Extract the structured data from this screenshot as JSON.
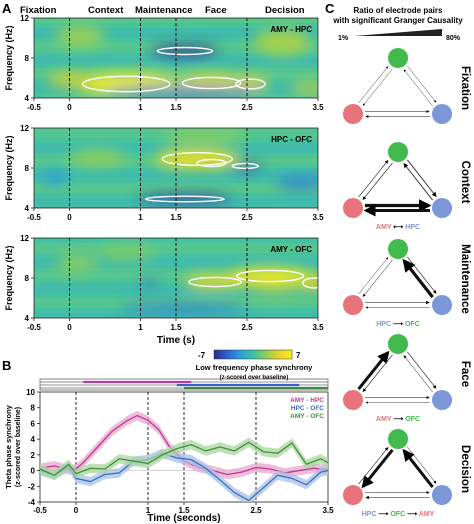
{
  "panel_labels": {
    "a": "A",
    "b": "B",
    "c": "C"
  },
  "phases": [
    "Fixation",
    "Context",
    "Maintenance",
    "Face",
    "Decision"
  ],
  "colorbar": {
    "min_label": "-7",
    "max_label": "7",
    "title": "Low frequency phase synchrony",
    "subtitle": "(z-scored over baseline)",
    "colors": [
      "#2c2a8c",
      "#2f5fd0",
      "#2aa0d8",
      "#3cc0a8",
      "#8ccf5a",
      "#e8d22a",
      "#f9f01c"
    ]
  },
  "ratio_legend": {
    "title_line1": "Ratio of electrode pairs",
    "title_line2": "with significant Granger Causality",
    "min_label": "1%",
    "max_label": "80%"
  },
  "node_colors": {
    "amy": "#e8737b",
    "hpc": "#7b97d6",
    "ofc": "#3fba4b"
  },
  "network_panels": [
    {
      "phase": "Fixation",
      "caption": null
    },
    {
      "phase": "Context",
      "caption": {
        "from": "AMY",
        "to": "HPC",
        "bidirectional": true
      }
    },
    {
      "phase": "Maintenance",
      "caption": {
        "from": "HPC",
        "to": "OFC",
        "bidirectional": false
      }
    },
    {
      "phase": "Face",
      "caption": {
        "from": "AMY",
        "to": "OFC",
        "bidirectional": false
      }
    },
    {
      "phase": "Decision",
      "caption": {
        "from": "HPC",
        "mid": "OFC",
        "to": "AMY",
        "bidirectional": false
      }
    }
  ],
  "chart_data": [
    {
      "type": "heatmap",
      "pair": "AMY - HPC",
      "x_range": [
        -0.5,
        3.5
      ],
      "y_range": [
        4,
        12
      ],
      "x_ticks": [
        "-0.5",
        "0",
        "1",
        "1.5",
        "2.5",
        "3.5"
      ],
      "y_ticks": [
        "4",
        "8",
        "12"
      ],
      "ylabel": "Frequency (Hz)",
      "xlabel": "",
      "phase_boundaries": [
        0,
        1,
        1.5,
        2.5
      ],
      "color_range": [
        -7,
        7
      ],
      "features": [
        {
          "x": 0.05,
          "y": 5.4,
          "w": 1.5,
          "h": 2.2,
          "value": 6.6,
          "significant": true
        },
        {
          "x": 1.5,
          "y": 5.5,
          "w": 1.0,
          "h": 1.6,
          "value": 5.6,
          "significant": true
        },
        {
          "x": 2.3,
          "y": 5.4,
          "w": 0.5,
          "h": 1.4,
          "value": 5.2,
          "significant": true
        },
        {
          "x": -0.3,
          "y": 5.8,
          "w": 0.6,
          "h": 1.4,
          "value": 4.2,
          "significant": false
        },
        {
          "x": 1.15,
          "y": 8.7,
          "w": 0.95,
          "h": 1.0,
          "value": -6.8,
          "significant": true
        },
        {
          "x": 0.5,
          "y": 4.7,
          "w": 2.2,
          "h": 0.8,
          "value": -4.5,
          "significant": false
        },
        {
          "x": 2.6,
          "y": 9.6,
          "w": 0.8,
          "h": 2.6,
          "value": 3.0,
          "significant": false
        },
        {
          "x": -0.2,
          "y": 10.2,
          "w": 0.7,
          "h": 2.0,
          "value": 2.8,
          "significant": false
        },
        {
          "x": 3.1,
          "y": 5.0,
          "w": 0.6,
          "h": 1.2,
          "value": 3.5,
          "significant": false
        }
      ]
    },
    {
      "type": "heatmap",
      "pair": "HPC - OFC",
      "x_range": [
        -0.5,
        3.5
      ],
      "y_range": [
        4,
        12
      ],
      "x_ticks": [
        "-0.5",
        "0",
        "1",
        "1.5",
        "2.5",
        "3.5"
      ],
      "y_ticks": [
        "4",
        "8",
        "12"
      ],
      "ylabel": "Frequency (Hz)",
      "xlabel": "",
      "phase_boundaries": [
        0,
        1,
        1.5,
        2.5
      ],
      "color_range": [
        -7,
        7
      ],
      "features": [
        {
          "x": 1.2,
          "y": 8.9,
          "w": 1.2,
          "h": 1.8,
          "value": 5.8,
          "significant": true
        },
        {
          "x": 1.75,
          "y": 8.5,
          "w": 0.5,
          "h": 1.0,
          "value": 5.0,
          "significant": true
        },
        {
          "x": 2.25,
          "y": 8.2,
          "w": 0.45,
          "h": 0.7,
          "value": -6.0,
          "significant": true
        },
        {
          "x": 0.95,
          "y": 4.9,
          "w": 1.35,
          "h": 0.8,
          "value": -6.5,
          "significant": true
        },
        {
          "x": 2.9,
          "y": 6.5,
          "w": 0.7,
          "h": 1.2,
          "value": -3.5,
          "significant": false
        },
        {
          "x": 0.0,
          "y": 9.0,
          "w": 0.8,
          "h": 1.5,
          "value": 2.5,
          "significant": false
        },
        {
          "x": 1.3,
          "y": 11.2,
          "w": 1.2,
          "h": 1.4,
          "value": 2.2,
          "significant": false
        },
        {
          "x": -0.4,
          "y": 7.0,
          "w": 0.4,
          "h": 1.2,
          "value": -2.5,
          "significant": false
        }
      ]
    },
    {
      "type": "heatmap",
      "pair": "AMY - OFC",
      "x_range": [
        -0.5,
        3.5
      ],
      "y_range": [
        4,
        12
      ],
      "x_ticks": [
        "-0.5",
        "0",
        "1",
        "1.5",
        "2.5",
        "3.5"
      ],
      "y_ticks": [
        "4",
        "8",
        "12"
      ],
      "ylabel": "Frequency (Hz)",
      "xlabel": "Time (s)",
      "phase_boundaries": [
        0,
        1,
        1.5,
        2.5
      ],
      "color_range": [
        -7,
        7
      ],
      "features": [
        {
          "x": 2.25,
          "y": 8.2,
          "w": 1.15,
          "h": 1.6,
          "value": 6.5,
          "significant": true
        },
        {
          "x": 1.6,
          "y": 7.6,
          "w": 0.9,
          "h": 1.3,
          "value": 5.5,
          "significant": true
        },
        {
          "x": 3.25,
          "y": 7.5,
          "w": 0.4,
          "h": 1.4,
          "value": 5.0,
          "significant": true
        },
        {
          "x": 2.5,
          "y": 6.9,
          "w": 0.8,
          "h": 0.6,
          "value": 4.5,
          "significant": false
        },
        {
          "x": 1.0,
          "y": 7.6,
          "w": 0.25,
          "h": 0.5,
          "value": -5.0,
          "significant": false
        },
        {
          "x": 0.7,
          "y": 5.0,
          "w": 1.8,
          "h": 0.9,
          "value": -3.5,
          "significant": false
        },
        {
          "x": -0.2,
          "y": 9.5,
          "w": 0.6,
          "h": 1.5,
          "value": 2.5,
          "significant": false
        },
        {
          "x": 0.4,
          "y": 10.5,
          "w": 0.8,
          "h": 1.4,
          "value": 2.0,
          "significant": false
        }
      ]
    },
    {
      "type": "line",
      "xlabel": "Time (seconds)",
      "ylabel": "Theta phase synchrony",
      "ylabel2": "(z-scored over baseline)",
      "x_range": [
        -0.5,
        3.5
      ],
      "y_range": [
        -4,
        10
      ],
      "x_ticks": [
        "-0.5",
        "0",
        "1",
        "1.5",
        "2.5",
        "3.5"
      ],
      "y_ticks": [
        "-4",
        "-2",
        "0",
        "2",
        "4",
        "6",
        "8",
        "10"
      ],
      "phase_boundaries": [
        0,
        1,
        1.5,
        2.5
      ],
      "significance_bars": [
        {
          "color": "#b23aa0",
          "start": 0.1,
          "end": 1.6
        },
        {
          "color": "#3a5ec8",
          "start": 1.4,
          "end": 3.1
        },
        {
          "color": "#3d8c3d",
          "start": 1.5,
          "end": 3.5
        }
      ],
      "series": [
        {
          "name": "AMY - HPC",
          "color": "#c0398f",
          "band": "#e7a7cf",
          "x": [
            -0.5,
            -0.3,
            -0.1,
            0,
            0.1,
            0.3,
            0.5,
            0.7,
            0.85,
            1.0,
            1.15,
            1.3,
            1.5,
            1.7,
            1.9,
            2.1,
            2.3,
            2.5,
            2.7,
            2.9,
            3.1,
            3.3,
            3.5
          ],
          "y": [
            0.3,
            0.6,
            0.1,
            0.2,
            1.0,
            3.0,
            5.0,
            6.3,
            7.0,
            6.4,
            5.2,
            3.0,
            1.2,
            0.4,
            0.0,
            -0.5,
            -0.2,
            0.4,
            0.2,
            -0.3,
            0.0,
            0.3,
            0.1
          ]
        },
        {
          "name": "HPC - OFC",
          "color": "#3b6fc2",
          "band": "#a7c0e6",
          "x": [
            -0.5,
            -0.3,
            -0.1,
            0,
            0.2,
            0.4,
            0.6,
            0.8,
            1.0,
            1.2,
            1.4,
            1.6,
            1.8,
            2.0,
            2.2,
            2.4,
            2.6,
            2.8,
            3.0,
            3.2,
            3.4,
            3.5
          ],
          "y": [
            0.0,
            -0.6,
            0.5,
            -1.0,
            -1.4,
            -0.5,
            -0.3,
            1.2,
            1.4,
            2.2,
            1.6,
            1.4,
            0.3,
            -1.2,
            -2.8,
            -3.8,
            -2.2,
            -0.6,
            -1.0,
            -1.8,
            -0.2,
            0.0
          ]
        },
        {
          "name": "AMY - OFC",
          "color": "#3f8f3f",
          "band": "#a9d59e",
          "x": [
            -0.5,
            -0.3,
            -0.1,
            0,
            0.2,
            0.4,
            0.6,
            0.8,
            1.0,
            1.2,
            1.4,
            1.6,
            1.8,
            2.0,
            2.2,
            2.4,
            2.6,
            2.8,
            3.0,
            3.2,
            3.4,
            3.5
          ],
          "y": [
            0.2,
            -0.6,
            0.8,
            -0.4,
            0.3,
            0.2,
            1.5,
            1.2,
            0.9,
            2.0,
            2.8,
            3.3,
            2.5,
            3.0,
            2.5,
            3.6,
            2.4,
            2.2,
            3.5,
            0.8,
            1.5,
            1.0
          ]
        }
      ]
    }
  ]
}
